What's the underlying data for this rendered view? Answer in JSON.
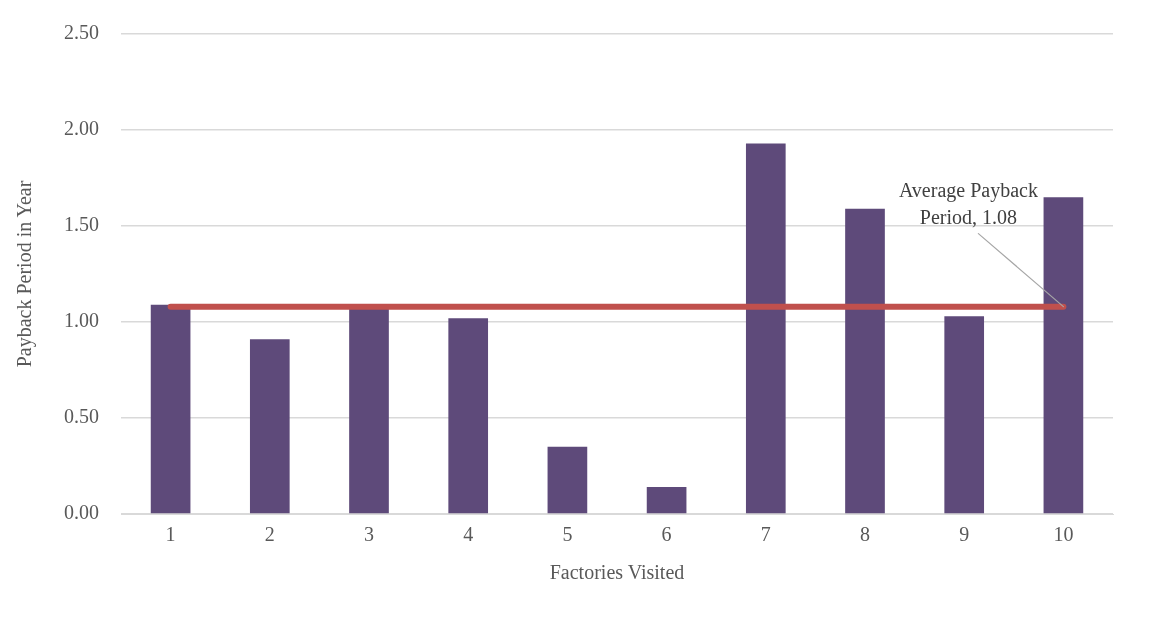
{
  "chart_data": {
    "type": "bar",
    "xlabel": "Factories Visited",
    "ylabel": "Payback Period in Year",
    "categories": [
      "1",
      "2",
      "3",
      "4",
      "5",
      "6",
      "7",
      "8",
      "9",
      "10"
    ],
    "values": [
      1.09,
      0.91,
      1.07,
      1.02,
      0.35,
      0.14,
      1.93,
      1.59,
      1.03,
      1.65
    ],
    "color": "#5e4a7a",
    "ylim": [
      0,
      2.5
    ],
    "yticks": [
      {
        "value": 0,
        "label": "0.00"
      },
      {
        "value": 0.5,
        "label": "0.50"
      },
      {
        "value": 1,
        "label": "1.00"
      },
      {
        "value": 1.5,
        "label": "1.50"
      },
      {
        "value": 2,
        "label": "2.00"
      },
      {
        "value": 2.5,
        "label": "2.50"
      }
    ],
    "grid": "y",
    "ref_lines": [
      {
        "axis": "y",
        "value": 1.08,
        "label": "Average Payback Period, 1.08",
        "color": "#c0504d"
      }
    ]
  }
}
